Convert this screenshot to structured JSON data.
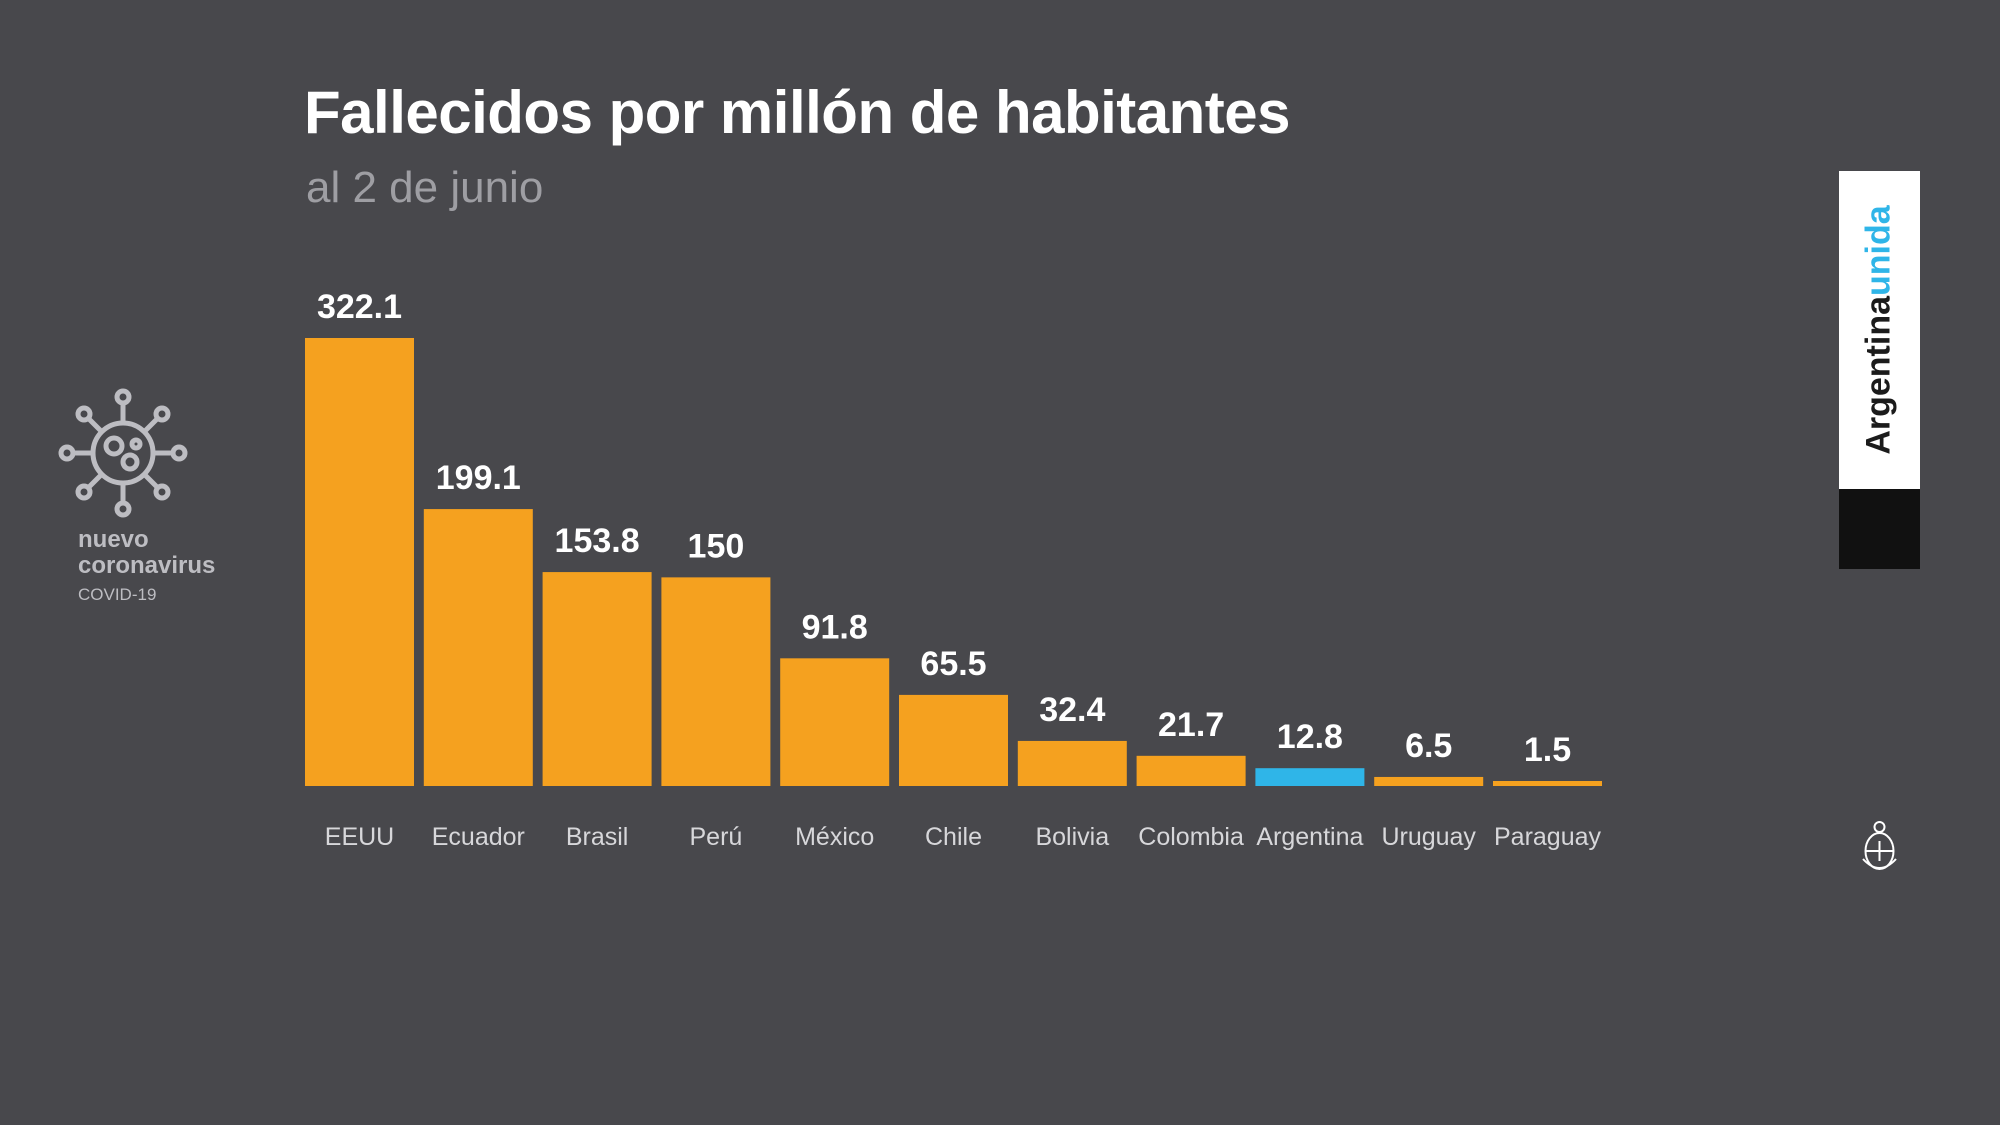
{
  "header": {
    "title": "Fallecidos por millón de habitantes",
    "subtitle": "al 2 de junio"
  },
  "logo": {
    "icon": "virus-icon",
    "line1": "nuevo",
    "line2": "coronavirus",
    "line3": "COVID-19"
  },
  "badge": {
    "word1": "Argentina",
    "word2": "unida",
    "seal_icon": "coat-of-arms-icon"
  },
  "colors": {
    "background": "#48484c",
    "bar": "#f5a11f",
    "highlight": "#2fb5e8",
    "text": "#ffffff",
    "muted": "#9e9ea3"
  },
  "chart_data": {
    "type": "bar",
    "title": "Fallecidos por millón de habitantes",
    "subtitle": "al 2 de junio",
    "categories": [
      "EEUU",
      "Ecuador",
      "Brasil",
      "Perú",
      "México",
      "Chile",
      "Bolivia",
      "Colombia",
      "Argentina",
      "Uruguay",
      "Paraguay"
    ],
    "values": [
      322.1,
      199.1,
      153.8,
      150,
      91.8,
      65.5,
      32.4,
      21.7,
      12.8,
      6.5,
      1.5
    ],
    "value_labels": [
      "322.1",
      "199.1",
      "153.8",
      "150",
      "91.8",
      "65.5",
      "32.4",
      "21.7",
      "12.8",
      "6.5",
      "1.5"
    ],
    "highlight_category": "Argentina",
    "ylim": [
      0,
      322.1
    ],
    "grid": false,
    "legend": "none",
    "xlabel": "",
    "ylabel": ""
  }
}
